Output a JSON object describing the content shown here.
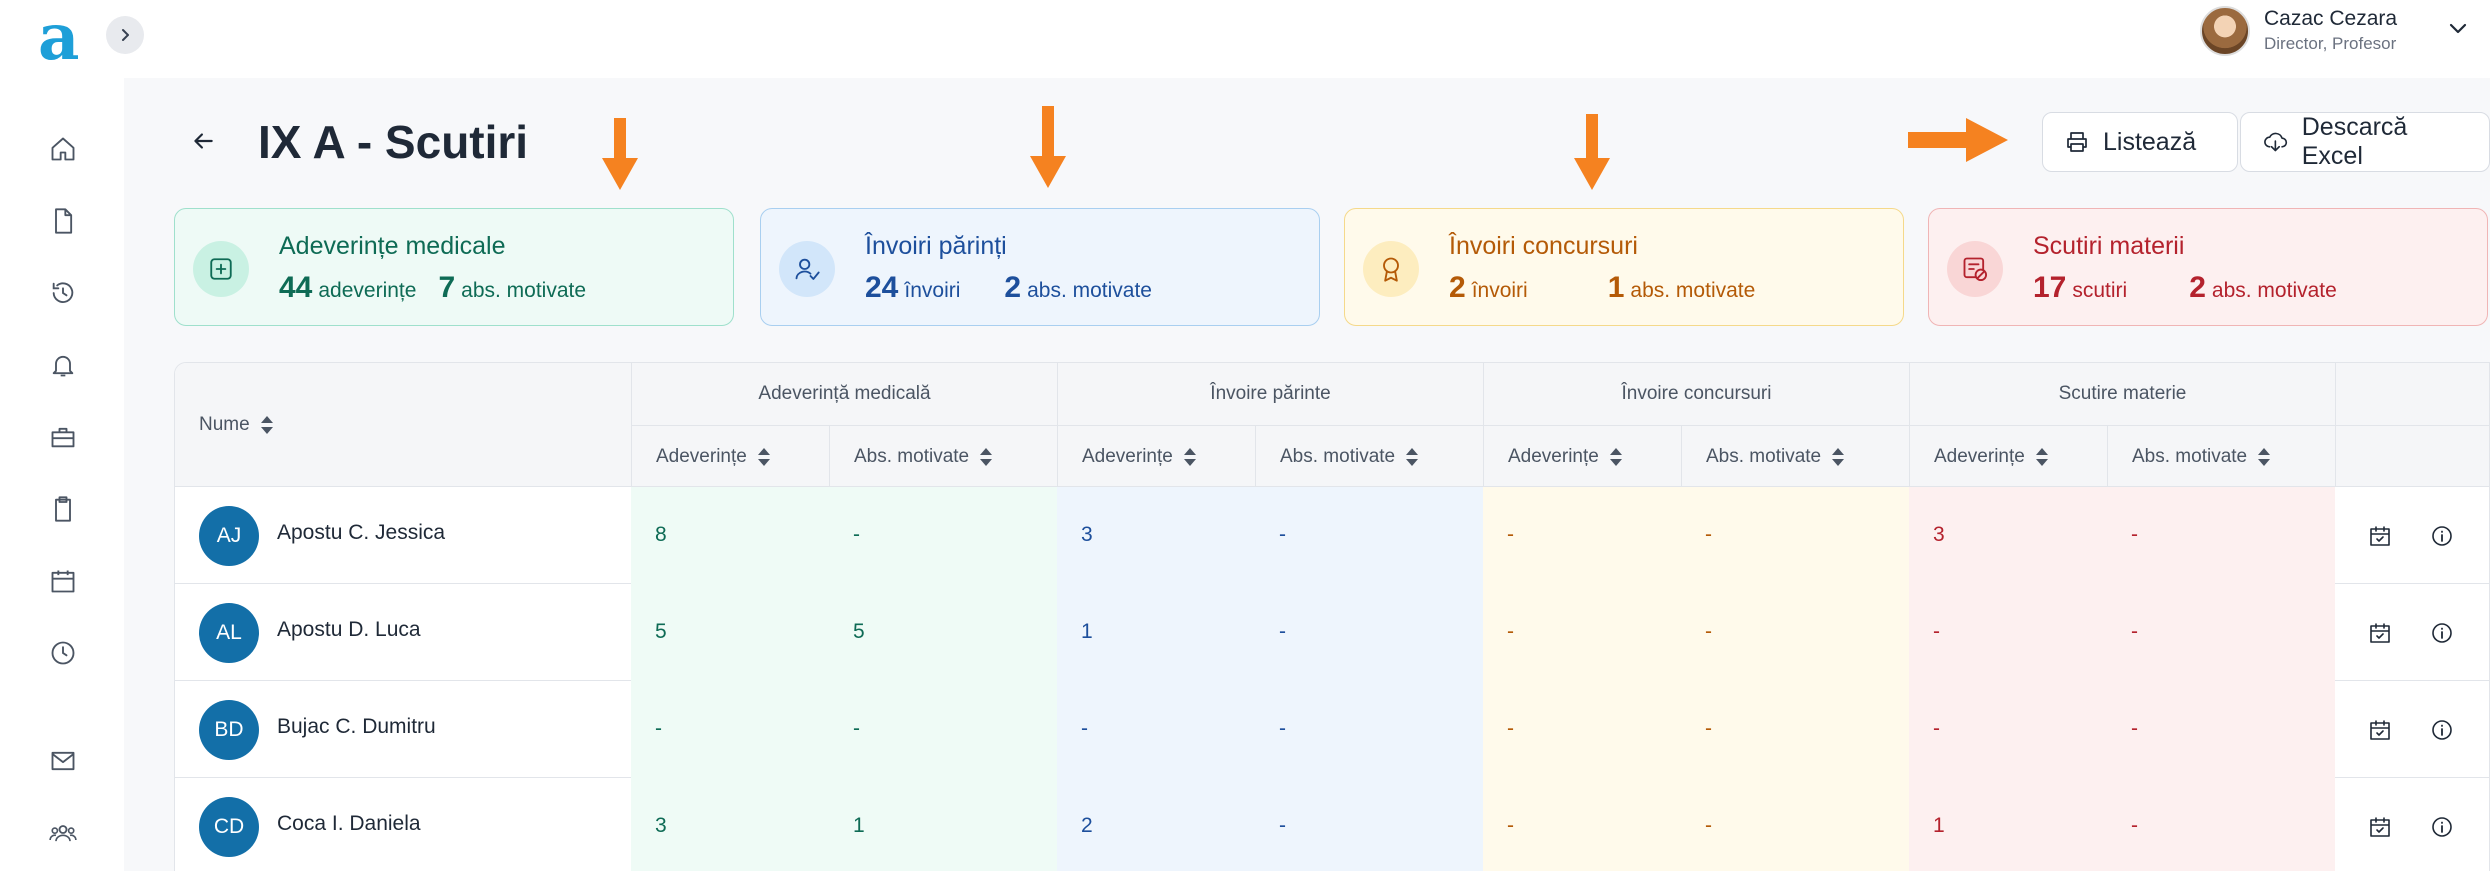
{
  "app": {
    "logo_letter": "a"
  },
  "user": {
    "name": "Cazac Cezara",
    "role": "Director, Profesor"
  },
  "page": {
    "title": "IX A - Scutiri"
  },
  "actions": {
    "print_label": "Listează",
    "excel_label": "Descarcă Excel"
  },
  "cards": {
    "medical": {
      "title": "Adeverințe medicale",
      "count": "44",
      "count_label": "adeverințe",
      "motivated": "7",
      "motivated_label": "abs. motivate"
    },
    "parents": {
      "title": "Învoiri părinți",
      "count": "24",
      "count_label": "învoiri",
      "motivated": "2",
      "motivated_label": "abs. motivate"
    },
    "contests": {
      "title": "Învoiri concursuri",
      "count": "2",
      "count_label": "învoiri",
      "motivated": "1",
      "motivated_label": "abs. motivate"
    },
    "subjects": {
      "title": "Scutiri materii",
      "count": "17",
      "count_label": "scutiri",
      "motivated": "2",
      "motivated_label": "abs. motivate"
    }
  },
  "table": {
    "name_header": "Nume",
    "groups": [
      "Adeverință medicală",
      "Învoire părinte",
      "Învoire concursuri",
      "Scutire materie"
    ],
    "sub_headers": [
      "Adeverințe",
      "Abs. motivate"
    ],
    "rows": [
      {
        "initials": "AJ",
        "name": "Apostu C. Jessica",
        "values": [
          "8",
          "-",
          "3",
          "-",
          "-",
          "-",
          "3",
          "-"
        ]
      },
      {
        "initials": "AL",
        "name": "Apostu D. Luca",
        "values": [
          "5",
          "5",
          "1",
          "-",
          "-",
          "-",
          "-",
          "-"
        ]
      },
      {
        "initials": "BD",
        "name": "Bujac C. Dumitru",
        "values": [
          "-",
          "-",
          "-",
          "-",
          "-",
          "-",
          "-",
          "-"
        ]
      },
      {
        "initials": "CD",
        "name": "Coca I. Daniela",
        "values": [
          "3",
          "1",
          "2",
          "-",
          "-",
          "-",
          "1",
          "-"
        ]
      }
    ]
  },
  "colors": {
    "accent": "#1e9fd8",
    "annotation_arrow": "#f58220",
    "avatar": "#136fa8"
  }
}
